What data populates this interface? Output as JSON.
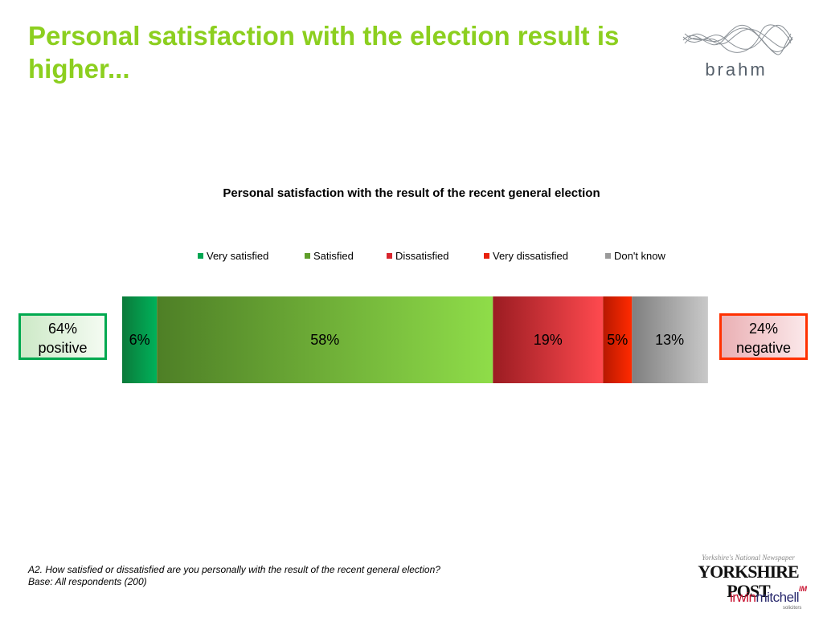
{
  "slide": {
    "title": "Personal satisfaction with the election result is higher...",
    "footnote_question": "A2. How satisfied or dissatisfied are you personally with the result of the recent general election?",
    "footnote_base": "Base: All respondents (200)"
  },
  "logos": {
    "brand": "brahm",
    "newspaper_tagline": "Yorkshire's National Newspaper",
    "newspaper_name": "YORKSHIRE POST",
    "solicitor_part1": "irwin",
    "solicitor_part2": "mitchell",
    "solicitor_sub": "solicitors",
    "solicitor_mark": "IM"
  },
  "callouts": {
    "positive_value": "64%",
    "positive_label": "positive",
    "negative_value": "24%",
    "negative_label": "negative"
  },
  "chart_data": {
    "type": "bar",
    "orientation": "horizontal-stacked-100",
    "title": "Personal satisfaction with the result of the recent general election",
    "legend_position": "top",
    "xlim": [
      0,
      101
    ],
    "grid": false,
    "series": [
      {
        "name": "Very satisfied",
        "value": 6,
        "label": "6%",
        "color": "#00a651",
        "gradient": [
          "#0b7a3a",
          "#00b15a"
        ]
      },
      {
        "name": "Satisfied",
        "value": 58,
        "label": "58%",
        "color": "#5f9e2a",
        "gradient": [
          "#4e7f26",
          "#8fdd49"
        ]
      },
      {
        "name": "Dissatisfied",
        "value": 19,
        "label": "19%",
        "color": "#d9262e",
        "gradient": [
          "#9b1c22",
          "#ff4a4f"
        ]
      },
      {
        "name": "Very dissatisfied",
        "value": 5,
        "label": "5%",
        "color": "#e8200c",
        "gradient": [
          "#b81800",
          "#ff2a00"
        ]
      },
      {
        "name": "Don't know",
        "value": 13,
        "label": "13%",
        "color": "#9a9a9a",
        "gradient": [
          "#7f7f7f",
          "#c8c8c8"
        ]
      }
    ]
  }
}
